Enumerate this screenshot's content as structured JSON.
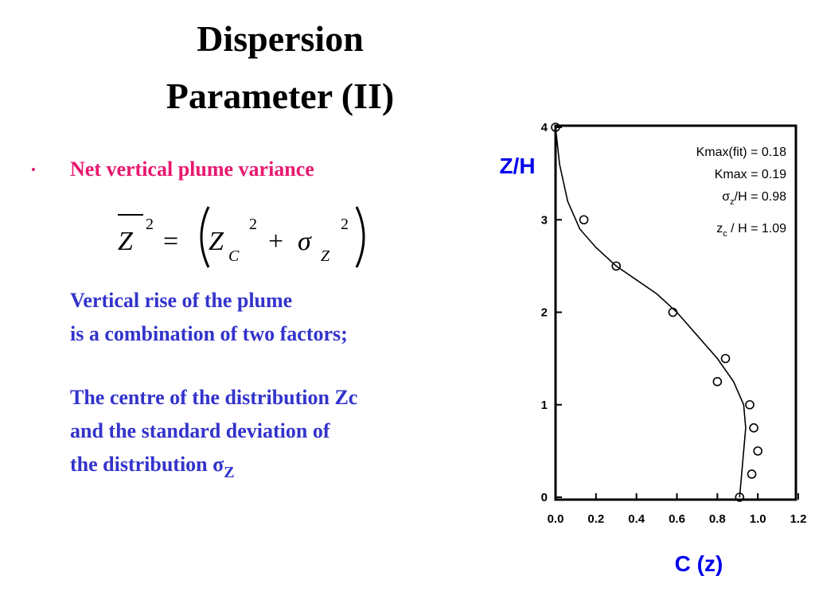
{
  "title": [
    "Dispersion",
    "Parameter (II)"
  ],
  "bullet": "Net vertical plume variance",
  "equation": {
    "z_bar": "Z",
    "z_bar_exp": "2",
    "equals": "=",
    "zc": "Z",
    "zc_sub": "C",
    "zc_exp": "2",
    "plus": "+",
    "sigma": "σ",
    "sigma_sub": "Z",
    "sigma_exp": "2"
  },
  "paragraph1": [
    "Vertical rise of the plume",
    "is a combination of two factors;"
  ],
  "paragraph2": [
    "The centre of the distribution Zc",
    "and the standard deviation of",
    "the distribution σ"
  ],
  "paragraph2_sub": "Z",
  "chart_data": {
    "type": "scatter",
    "x_label": "C (z)",
    "y_label": "Z/H",
    "annotations": [
      [
        "Kmax(fit) = 0.18"
      ],
      [
        "Kmax = 0.19"
      ],
      [
        "σ",
        "z",
        "/H = 0.98"
      ],
      [
        "z",
        "c",
        " / H = 1.09"
      ]
    ],
    "xlim": [
      0,
      1.2
    ],
    "ylim": [
      0,
      4
    ],
    "xticks": [
      {
        "value": 0,
        "label": "0.0"
      },
      {
        "value": 0.2,
        "label": "0.2"
      },
      {
        "value": 0.4,
        "label": "0.4"
      },
      {
        "value": 0.6,
        "label": "0.6"
      },
      {
        "value": 0.8,
        "label": "0.8"
      },
      {
        "value": 1.0,
        "label": "1.0"
      },
      {
        "value": 1.2,
        "label": "1.2"
      }
    ],
    "yticks": [
      0,
      1,
      2,
      3,
      4
    ],
    "color": "#000000",
    "series": [
      {
        "type": "scatter",
        "x": [
          0.0,
          0.14,
          0.3,
          0.58,
          0.84,
          0.8,
          0.96,
          0.98,
          1.0,
          0.97,
          0.91
        ],
        "values": [
          4.0,
          3.0,
          2.5,
          2.0,
          1.5,
          1.25,
          1.0,
          0.75,
          0.5,
          0.25,
          0.0
        ]
      },
      {
        "type": "line",
        "x": [
          0.0,
          0.02,
          0.06,
          0.12,
          0.2,
          0.3,
          0.4,
          0.5,
          0.6,
          0.7,
          0.8,
          0.88,
          0.93,
          0.94,
          0.93,
          0.92,
          0.91
        ],
        "values": [
          4.0,
          3.6,
          3.2,
          2.9,
          2.7,
          2.5,
          2.35,
          2.2,
          2.0,
          1.75,
          1.5,
          1.25,
          1.0,
          0.75,
          0.5,
          0.25,
          0.0
        ]
      }
    ]
  }
}
